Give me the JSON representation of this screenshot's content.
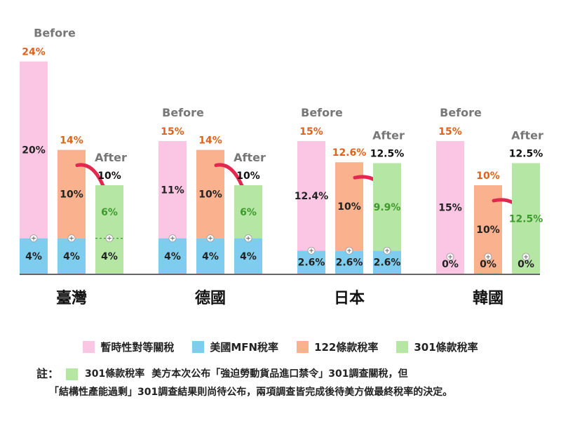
{
  "colors": {
    "temp": "#fbc6e4",
    "mfn": "#7ecdef",
    "s122": "#f9b18e",
    "s301": "#b5e6a4",
    "orange_text": "#e0621a",
    "gray_text": "#777777",
    "green_text": "#3f9a2d",
    "arrow": "#e2284f"
  },
  "labels": {
    "before": "Before",
    "after": "After",
    "plus": "+"
  },
  "chart_data": {
    "type": "bar",
    "stacked": true,
    "ylim": [
      0,
      24
    ],
    "categories": [
      "臺灣",
      "德國",
      "日本",
      "韓國"
    ],
    "series": [
      {
        "name": "暫時性對等關稅",
        "key": "temp"
      },
      {
        "name": "美國MFN稅率",
        "key": "mfn"
      },
      {
        "name": "122條款稅率",
        "key": "s122"
      },
      {
        "name": "301條款稅率",
        "key": "s301"
      }
    ],
    "groups": [
      {
        "country": "臺灣",
        "bars": [
          {
            "kind": "before",
            "total": "24%",
            "segments": [
              {
                "series": "mfn",
                "value": 4,
                "label": "4%"
              },
              {
                "series": "temp",
                "value": 20,
                "label": "20%"
              }
            ]
          },
          {
            "kind": "mid",
            "total": "14%",
            "segments": [
              {
                "series": "mfn",
                "value": 4,
                "label": "4%"
              },
              {
                "series": "s122",
                "value": 10,
                "label": "10%"
              }
            ]
          },
          {
            "kind": "after",
            "total": "10%",
            "dashed": true,
            "segments": [
              {
                "series": "s301",
                "value": 4,
                "label": "4%"
              },
              {
                "series": "s301",
                "value": 6,
                "label": "6%"
              }
            ]
          }
        ]
      },
      {
        "country": "德國",
        "bars": [
          {
            "kind": "before",
            "total": "15%",
            "segments": [
              {
                "series": "mfn",
                "value": 4,
                "label": "4%"
              },
              {
                "series": "temp",
                "value": 11,
                "label": "11%"
              }
            ]
          },
          {
            "kind": "mid",
            "total": "14%",
            "segments": [
              {
                "series": "mfn",
                "value": 4,
                "label": "4%"
              },
              {
                "series": "s122",
                "value": 10,
                "label": "10%"
              }
            ]
          },
          {
            "kind": "after",
            "total": "10%",
            "segments": [
              {
                "series": "mfn",
                "value": 4,
                "label": "4%"
              },
              {
                "series": "s301",
                "value": 6,
                "label": "6%"
              }
            ]
          }
        ]
      },
      {
        "country": "日本",
        "bars": [
          {
            "kind": "before",
            "total": "15%",
            "segments": [
              {
                "series": "mfn",
                "value": 2.6,
                "label": "2.6%"
              },
              {
                "series": "temp",
                "value": 12.4,
                "label": "12.4%"
              }
            ]
          },
          {
            "kind": "mid",
            "total": "12.6%",
            "segments": [
              {
                "series": "mfn",
                "value": 2.6,
                "label": "2.6%"
              },
              {
                "series": "s122",
                "value": 10,
                "label": "10%"
              }
            ]
          },
          {
            "kind": "after",
            "total": "12.5%",
            "segments": [
              {
                "series": "mfn",
                "value": 2.6,
                "label": "2.6%"
              },
              {
                "series": "s301",
                "value": 9.9,
                "label": "9.9%"
              }
            ]
          }
        ]
      },
      {
        "country": "韓國",
        "bars": [
          {
            "kind": "before",
            "total": "15%",
            "segments": [
              {
                "series": "mfn",
                "value": 0,
                "label": "0%"
              },
              {
                "series": "temp",
                "value": 15,
                "label": "15%"
              }
            ]
          },
          {
            "kind": "mid",
            "total": "10%",
            "segments": [
              {
                "series": "mfn",
                "value": 0,
                "label": "0%"
              },
              {
                "series": "s122",
                "value": 10,
                "label": "10%"
              }
            ]
          },
          {
            "kind": "after",
            "total": "12.5%",
            "segments": [
              {
                "series": "mfn",
                "value": 0,
                "label": "0%"
              },
              {
                "series": "s301",
                "value": 12.5,
                "label": "12.5%"
              }
            ]
          }
        ]
      }
    ]
  },
  "legend": [
    {
      "key": "temp",
      "label": "暫時性對等關稅"
    },
    {
      "key": "mfn",
      "label": "美國MFN稅率"
    },
    {
      "key": "s122",
      "label": "122條款稅率"
    },
    {
      "key": "s301",
      "label": "301條款稅率"
    }
  ],
  "note": {
    "head": "註：",
    "swatch_label": "301條款稅率",
    "line1": "美方本次公布「強迫勞動貨品進口禁令」301調查關稅，但",
    "line2": "「結構性產能過剩」301調查結果則尚待公布，兩項調查皆完成後待美方做最終稅率的決定。"
  }
}
